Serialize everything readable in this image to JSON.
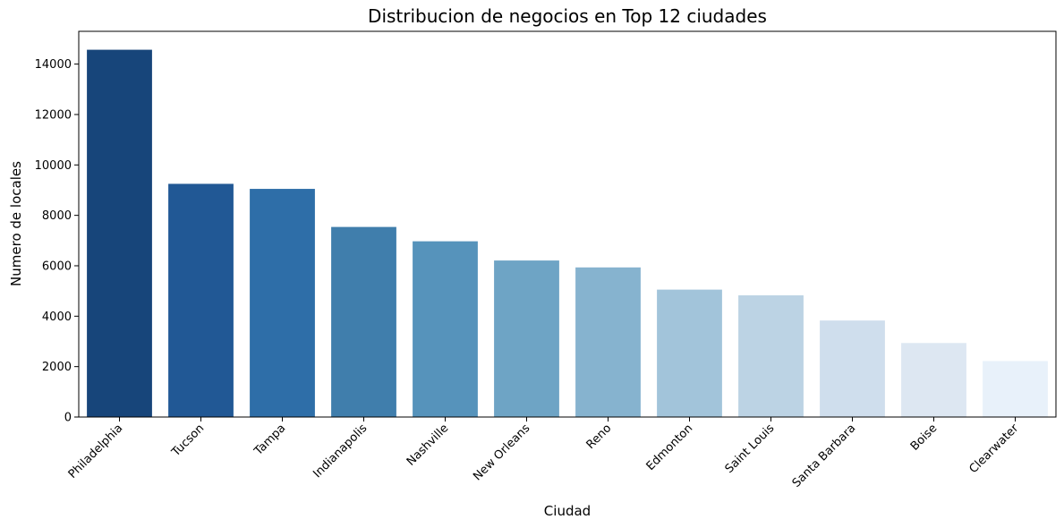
{
  "chart_data": {
    "type": "bar",
    "title": "Distribucion de negocios en Top 12 ciudades",
    "xlabel": "Ciudad",
    "ylabel": "Numero de locales",
    "categories": [
      "Philadelphia",
      "Tucson",
      "Tampa",
      "Indianapolis",
      "Nashville",
      "New Orleans",
      "Reno",
      "Edmonton",
      "Saint Louis",
      "Santa Barbara",
      "Boise",
      "Clearwater"
    ],
    "values": [
      14569,
      9250,
      9050,
      7540,
      6971,
      6209,
      5935,
      5054,
      4827,
      3829,
      2937,
      2221
    ],
    "colors": [
      "#17457a",
      "#215895",
      "#2e6ea8",
      "#407eac",
      "#5693bb",
      "#6ea4c5",
      "#86b3cf",
      "#a2c4da",
      "#bcd3e4",
      "#cfdeed",
      "#dde7f2",
      "#e8f1fa"
    ],
    "ylim": [
      0,
      15300
    ],
    "yticks": [
      0,
      2000,
      4000,
      6000,
      8000,
      10000,
      12000,
      14000
    ],
    "grid": false,
    "legend": "none"
  }
}
